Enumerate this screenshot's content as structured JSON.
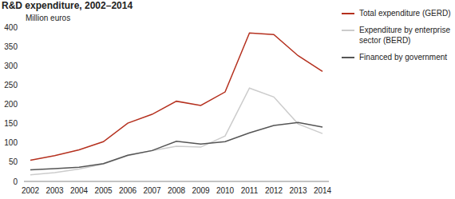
{
  "chart_data": {
    "type": "line",
    "title": "R&D expenditure, 2002–2014",
    "y_label": "Million euros",
    "categories": [
      "2002",
      "2003",
      "2004",
      "2005",
      "2006",
      "2007",
      "2008",
      "2009",
      "2010",
      "2011",
      "2012",
      "2013",
      "2014"
    ],
    "series": [
      {
        "name": "Total expenditure (GERD)",
        "color": "#b5301e",
        "values": [
          55,
          67,
          82,
          103,
          151,
          174,
          208,
          197,
          232,
          385,
          381,
          326,
          285
        ]
      },
      {
        "name": "Expenditure by enterprise sector (BERD)",
        "color": "#cccccc",
        "values": [
          17,
          23,
          32,
          45,
          67,
          80,
          91,
          89,
          118,
          242,
          219,
          149,
          124
        ]
      },
      {
        "name": "Financed by government",
        "color": "#555555",
        "values": [
          30,
          33,
          37,
          46,
          68,
          80,
          104,
          97,
          103,
          126,
          145,
          153,
          141
        ]
      }
    ],
    "ylim": [
      0,
      400
    ],
    "yticks": [
      0,
      50,
      100,
      150,
      200,
      250,
      300,
      350,
      400
    ],
    "grid": false,
    "legend": "right"
  }
}
